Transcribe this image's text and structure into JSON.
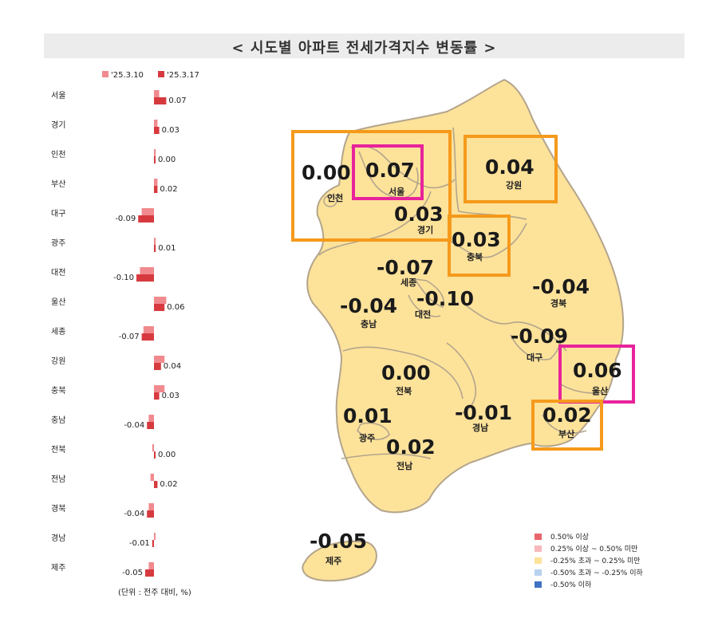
{
  "title": "< 시도별 아파트 전세가격지수 변동률 >",
  "colors": {
    "prev_week": "#f08a8e",
    "this_week": "#d63a3f",
    "map_fill": "#fde29a",
    "map_stroke": "#b3a58c",
    "box_orange": "#f59a1b",
    "box_magenta": "#e8239b",
    "legend": [
      "#e8656b",
      "#f6b8ba",
      "#fde29a",
      "#b7d3ee",
      "#3f72c2"
    ]
  },
  "chart_data": {
    "type": "bar",
    "orientation": "horizontal",
    "categories": [
      "서울",
      "경기",
      "인천",
      "부산",
      "대구",
      "광주",
      "대전",
      "울산",
      "세종",
      "강원",
      "충북",
      "충남",
      "전북",
      "전남",
      "경북",
      "경남",
      "제주"
    ],
    "series": [
      {
        "name": "'25.3.10",
        "values": [
          0.03,
          0.02,
          0.01,
          0.02,
          -0.07,
          0.01,
          -0.08,
          0.07,
          -0.06,
          0.06,
          0.06,
          -0.03,
          -0.01,
          -0.02,
          -0.03,
          0.0,
          -0.03
        ]
      },
      {
        "name": "'25.3.17",
        "values": [
          0.07,
          0.03,
          0.0,
          0.02,
          -0.09,
          0.01,
          -0.1,
          0.06,
          -0.07,
          0.04,
          0.03,
          -0.04,
          0.0,
          0.02,
          -0.04,
          -0.01,
          -0.05
        ]
      }
    ],
    "value_labels": [
      "0.07",
      "0.03",
      "0.00",
      "0.02",
      "-0.09",
      "0.01",
      "-0.10",
      "0.06",
      "-0.07",
      "0.04",
      "0.03",
      "-0.04",
      "0.00",
      "0.02",
      "-0.04",
      "-0.01",
      "-0.05"
    ],
    "unit_note": "(단위 : 전주 대비, %)"
  },
  "map": {
    "labels": [
      {
        "value": "0.00",
        "name": "인천"
      },
      {
        "value": "0.07",
        "name": "서울"
      },
      {
        "value": "0.03",
        "name": "경기"
      },
      {
        "value": "0.04",
        "name": "강원"
      },
      {
        "value": "0.03",
        "name": "충북"
      },
      {
        "value": "-0.07",
        "name": "세종"
      },
      {
        "value": "-0.10",
        "name": "대전"
      },
      {
        "value": "-0.04",
        "name": "충남"
      },
      {
        "value": "-0.04",
        "name": "경북"
      },
      {
        "value": "-0.09",
        "name": "대구"
      },
      {
        "value": "0.06",
        "name": "울산"
      },
      {
        "value": "0.00",
        "name": "전북"
      },
      {
        "value": "-0.01",
        "name": "경남"
      },
      {
        "value": "0.02",
        "name": "부산"
      },
      {
        "value": "0.01",
        "name": "광주"
      },
      {
        "value": "0.02",
        "name": "전남"
      },
      {
        "value": "-0.05",
        "name": "제주"
      }
    ]
  },
  "legend": [
    "0.50% 이상",
    "0.25% 이상 ~ 0.50% 미만",
    "-0.25% 초과 ~ 0.25% 미만",
    "-0.50% 초과 ~ -0.25% 이하",
    "-0.50% 이하"
  ]
}
